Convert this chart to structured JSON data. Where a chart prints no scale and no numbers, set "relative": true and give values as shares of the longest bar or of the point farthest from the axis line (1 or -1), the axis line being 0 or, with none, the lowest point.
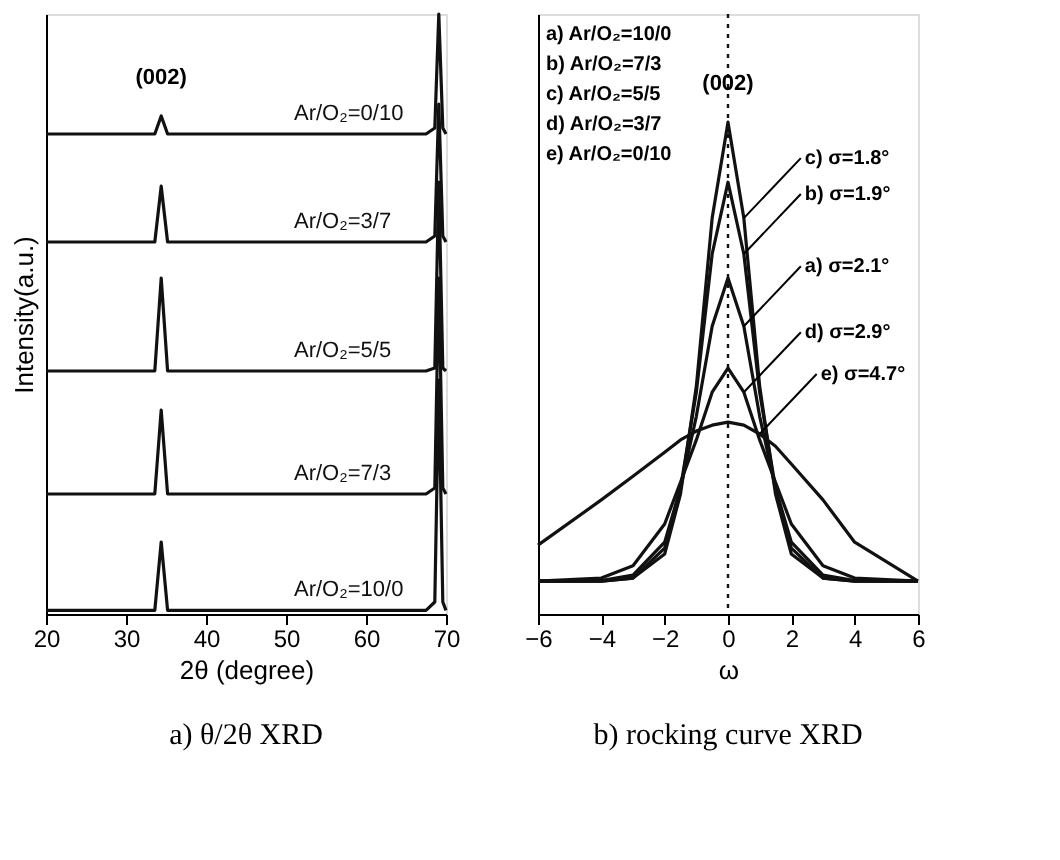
{
  "chart_data": [
    {
      "type": "line",
      "title": "a) θ/2θ XRD",
      "xlabel": "2θ (degree)",
      "ylabel": "Intensity(a.u.)",
      "relative": true,
      "tick_labels": "x",
      "grid": false,
      "xlim": [
        20,
        70
      ],
      "xticks": [
        20,
        30,
        40,
        50,
        60,
        70
      ],
      "x": [
        20,
        33.6,
        34.4,
        35.2,
        40,
        50,
        60,
        67.5,
        68.6,
        69.1,
        69.6,
        70
      ],
      "series": [
        {
          "name": "Ar/O₂=0/10",
          "color": "#111111",
          "values": [
            0.8,
            0.8,
            0.83,
            0.8,
            0.8,
            0.8,
            0.8,
            0.8,
            0.81,
            1.0,
            0.81,
            0.8
          ]
        },
        {
          "name": "Ar/O₂=3/7",
          "color": "#111111",
          "values": [
            0.62,
            0.62,
            0.713,
            0.62,
            0.62,
            0.62,
            0.62,
            0.62,
            0.63,
            0.85,
            0.63,
            0.62
          ]
        },
        {
          "name": "Ar/O₂=5/5",
          "color": "#111111",
          "values": [
            0.405,
            0.405,
            0.56,
            0.405,
            0.405,
            0.405,
            0.405,
            0.405,
            0.41,
            0.72,
            0.41,
            0.405
          ]
        },
        {
          "name": "Ar/O₂=7/3",
          "color": "#111111",
          "values": [
            0.2,
            0.2,
            0.34,
            0.2,
            0.2,
            0.2,
            0.2,
            0.2,
            0.21,
            0.56,
            0.21,
            0.2
          ]
        },
        {
          "name": "Ar/O₂=10/0",
          "color": "#111111",
          "values": [
            0.006,
            0.006,
            0.12,
            0.006,
            0.006,
            0.006,
            0.006,
            0.006,
            0.02,
            0.39,
            0.02,
            0.006
          ]
        }
      ],
      "annotations": [
        {
          "text": "(002)",
          "x": 34.4,
          "y": 0.83
        }
      ]
    },
    {
      "type": "line",
      "title": "b) rocking curve XRD",
      "xlabel": "ω",
      "relative": true,
      "tick_labels": "x",
      "grid": false,
      "xlim": [
        -6,
        6
      ],
      "xticks": [
        -6,
        -4,
        -2,
        0,
        2,
        4,
        6
      ],
      "x": [
        -6,
        -4,
        -3,
        -2,
        -1.5,
        -1,
        -0.5,
        0,
        0.5,
        1,
        1.5,
        2,
        3,
        4,
        6
      ],
      "series": [
        {
          "color": "#111111",
          "values": [
            0.067,
            0.067,
            0.073,
            0.122,
            0.244,
            0.463,
            0.805,
            1,
            0.805,
            0.463,
            0.244,
            0.122,
            0.073,
            0.067,
            0.067
          ]
        },
        {
          "color": "#111111",
          "values": [
            0.067,
            0.067,
            0.073,
            0.134,
            0.256,
            0.451,
            0.732,
            0.878,
            0.732,
            0.451,
            0.256,
            0.134,
            0.073,
            0.067,
            0.067
          ]
        },
        {
          "color": "#111111",
          "values": [
            0.067,
            0.068,
            0.079,
            0.146,
            0.256,
            0.402,
            0.585,
            0.683,
            0.585,
            0.402,
            0.256,
            0.146,
            0.079,
            0.068,
            0.067
          ]
        },
        {
          "color": "#111111",
          "values": [
            0.067,
            0.073,
            0.098,
            0.183,
            0.268,
            0.354,
            0.451,
            0.5,
            0.451,
            0.354,
            0.268,
            0.183,
            0.098,
            0.073,
            0.067
          ]
        },
        {
          "color": "#111111",
          "values": [
            0.14,
            0.232,
            0.28,
            0.329,
            0.354,
            0.372,
            0.384,
            0.39,
            0.384,
            0.366,
            0.341,
            0.305,
            0.232,
            0.146,
            0.067
          ]
        }
      ],
      "ref_lines": [
        {
          "axis": "x",
          "value": 0,
          "color": "#111111",
          "line_style": "dotted"
        }
      ],
      "annotations": [
        "a) Ar/O₂=10/0",
        "b) Ar/O₂=7/3",
        "c) Ar/O₂=5/5",
        "d) Ar/O₂=3/7",
        "e) Ar/O₂=0/10",
        {
          "text": "(002)",
          "x": 0,
          "y": 1
        },
        {
          "text": "c) σ=1.8°",
          "x": 0.5,
          "y": 0.805
        },
        {
          "text": "b) σ=1.9°",
          "x": 0.5,
          "y": 0.732
        },
        {
          "text": "a) σ=2.1°",
          "x": 0.5,
          "y": 0.585
        },
        {
          "text": "d) σ=2.9°",
          "x": 0.5,
          "y": 0.451
        },
        {
          "text": "e) σ=4.7°",
          "x": 1,
          "y": 0.366
        }
      ]
    }
  ]
}
